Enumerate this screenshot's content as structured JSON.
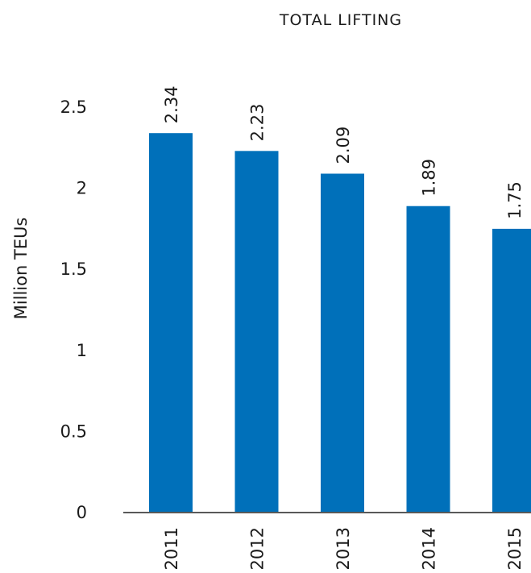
{
  "chart_data": {
    "type": "bar",
    "title": "TOTAL LIFTING",
    "xlabel": "",
    "ylabel": "Million TEUs",
    "categories": [
      "2011",
      "2012",
      "2013",
      "2014",
      "2015"
    ],
    "values": [
      2.34,
      2.23,
      2.09,
      1.89,
      1.75
    ],
    "data_labels": [
      "2.34",
      "2.23",
      "2.09",
      "1.89",
      "1.75"
    ],
    "yticks": [
      "0",
      "0.5",
      "1",
      "1.5",
      "2",
      "2.5"
    ],
    "ylim": [
      0,
      2.5
    ],
    "grid": false,
    "legend": "none",
    "bar_color": "#0070BA",
    "axis_color": "#595959"
  }
}
